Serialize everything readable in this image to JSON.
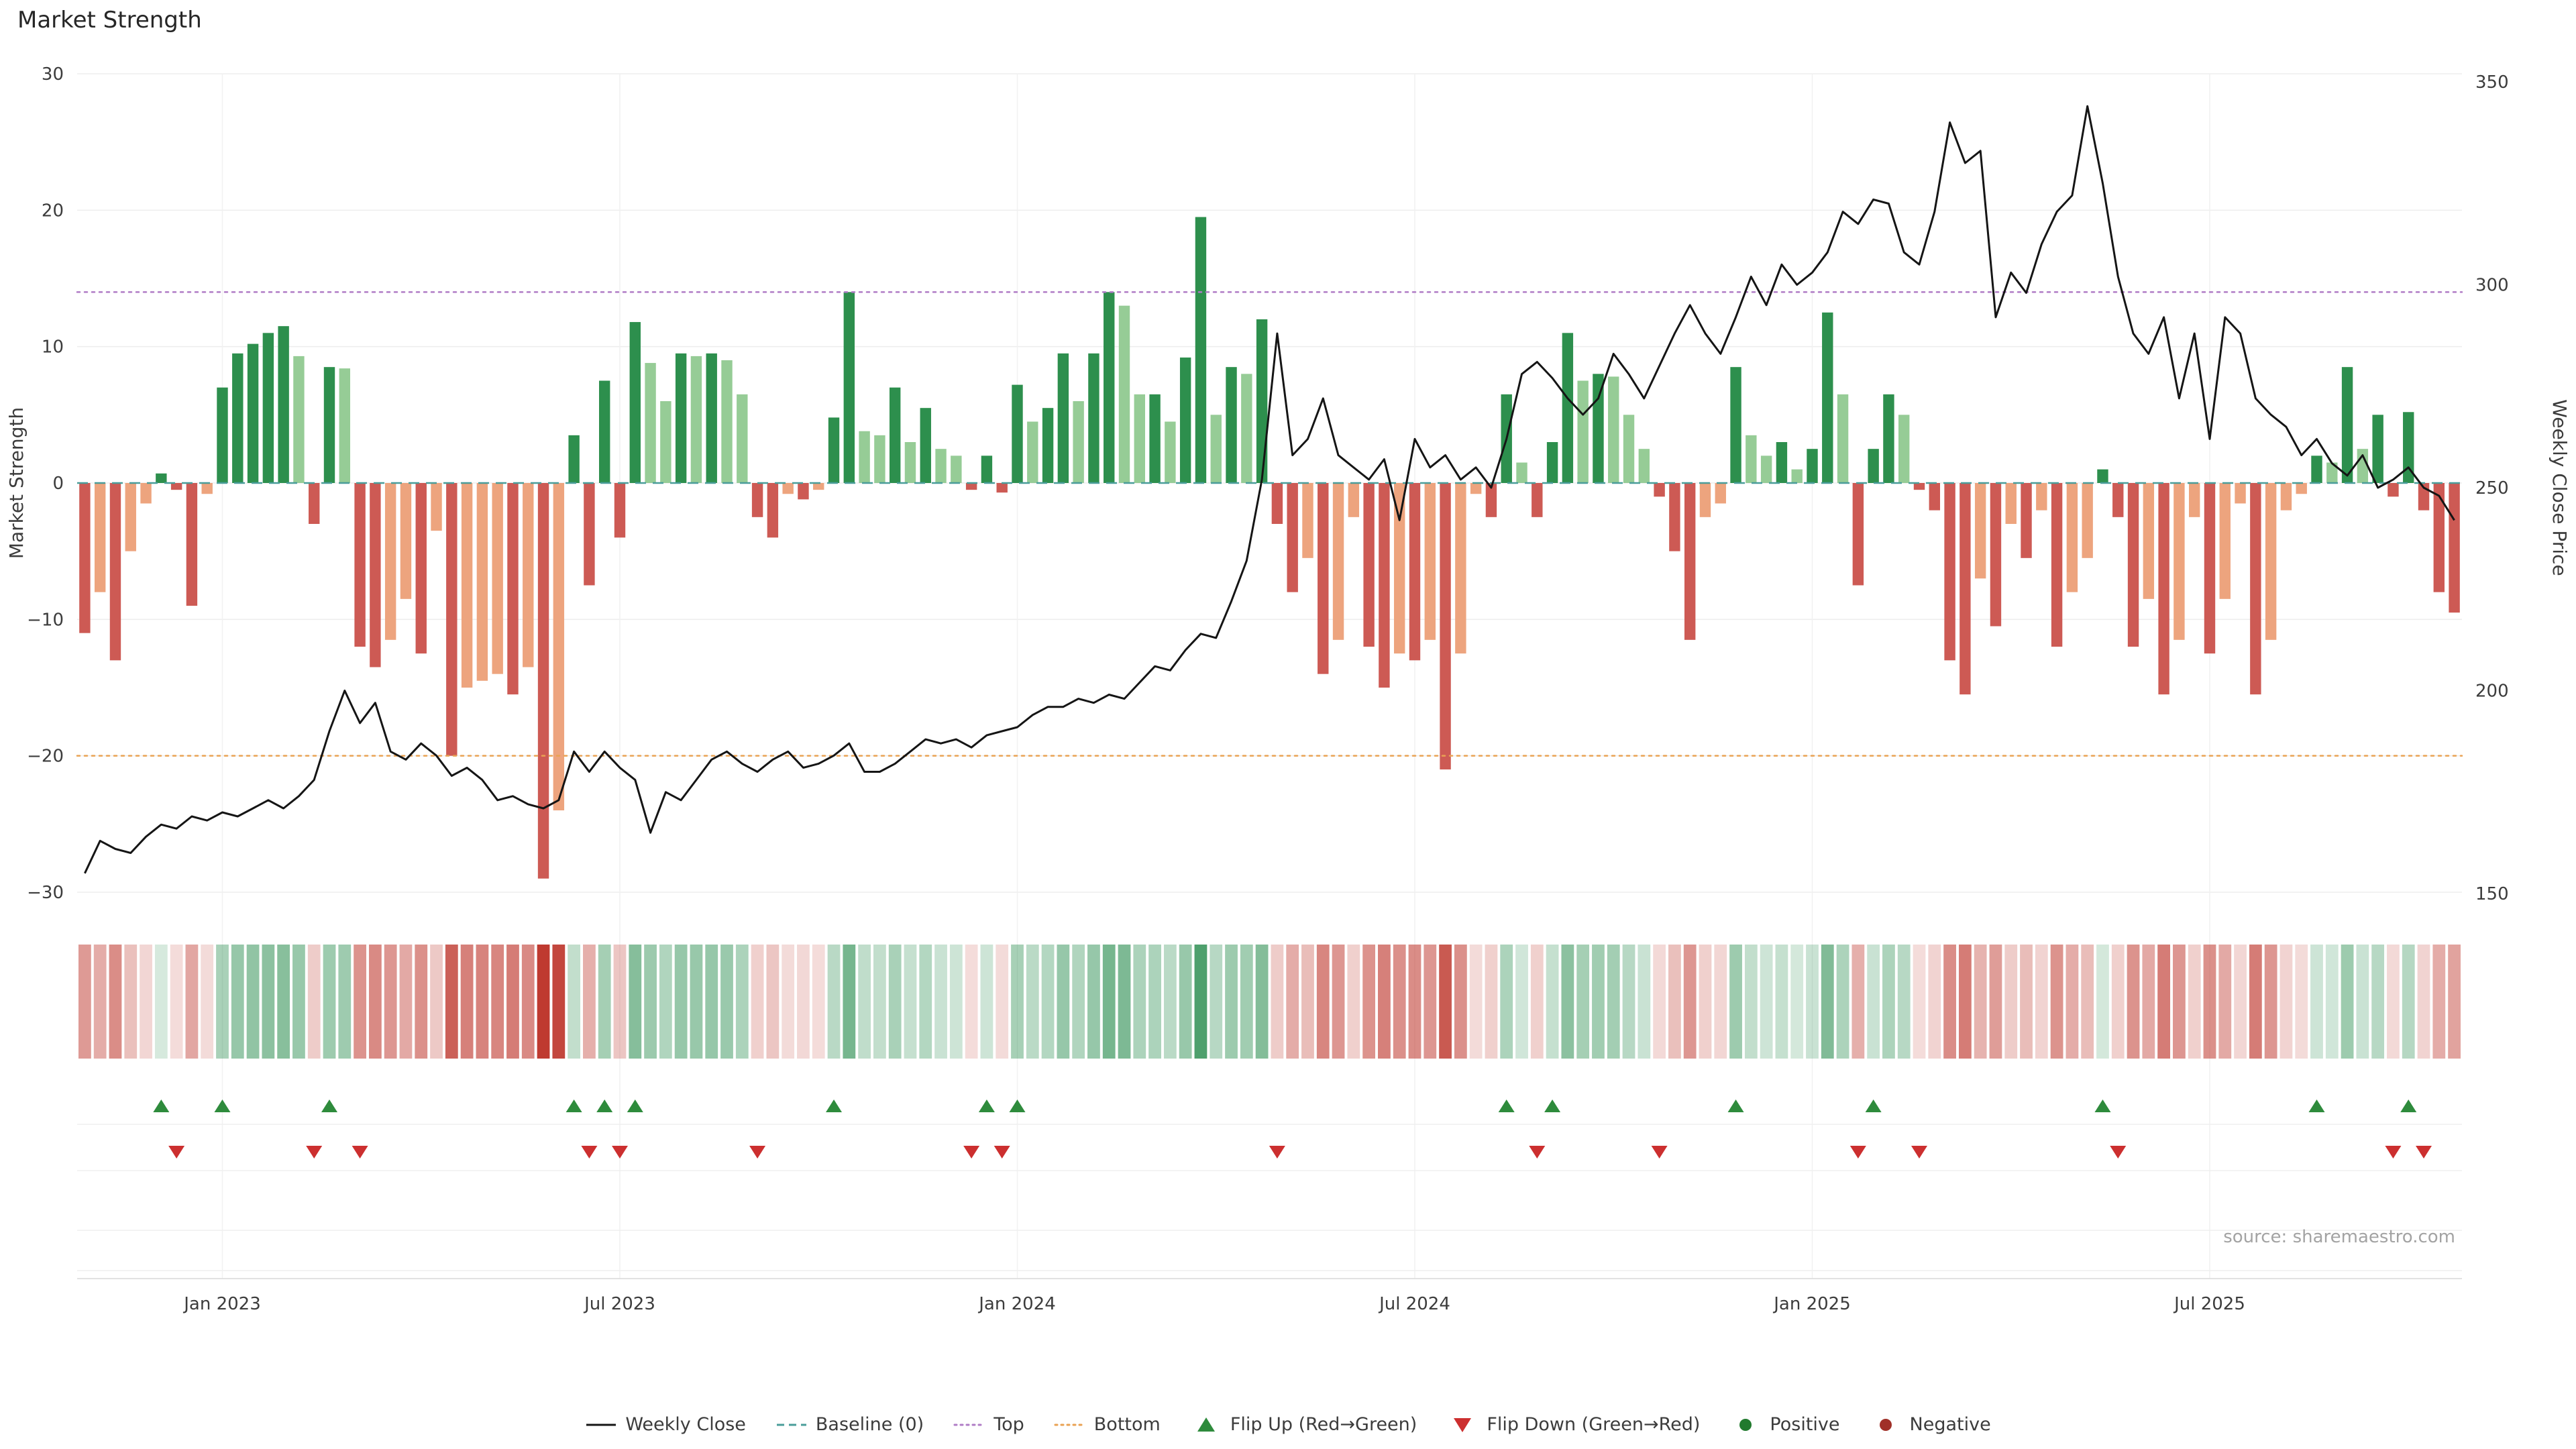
{
  "page": {
    "title": "Market Strength"
  },
  "chart_data": {
    "type": "combo",
    "title": "Market Strength",
    "source_label": "source: sharemaestro.com",
    "x_axis": {
      "tick_labels": [
        "Jan 2023",
        "Jul 2023",
        "Jan 2024",
        "Jul 2024",
        "Jan 2025",
        "Jul 2025"
      ],
      "tick_weeks": [
        9,
        35,
        61,
        87,
        113,
        139
      ],
      "n_weeks": 156
    },
    "left_axis": {
      "label": "Market Strength",
      "min": -30,
      "max": 30,
      "ticks": [
        -30,
        -20,
        -10,
        0,
        10,
        20,
        30
      ]
    },
    "right_axis": {
      "label": "Weekly Close Price",
      "min": 150,
      "max": 350,
      "ticks": [
        150,
        200,
        250,
        300,
        350
      ]
    },
    "reference_lines": {
      "baseline": 0,
      "top": 14,
      "bottom": -20
    },
    "series": [
      {
        "name": "Market Strength",
        "type": "bar",
        "axis": "left",
        "values": [
          -11,
          -8,
          -13,
          -5,
          -1.5,
          0.7,
          -0.5,
          -9,
          -0.8,
          7,
          9.5,
          10.2,
          11,
          11.5,
          9.3,
          -3,
          8.5,
          8.4,
          -12,
          -13.5,
          -11.5,
          -8.5,
          -12.5,
          -3.5,
          -20,
          -15,
          -14.5,
          -14,
          -15.5,
          -13.5,
          -29,
          -24,
          3.5,
          -7.5,
          7.5,
          -4,
          11.8,
          8.8,
          6,
          9.5,
          9.3,
          9.5,
          9,
          6.5,
          -2.5,
          -4,
          -0.8,
          -1.2,
          -0.5,
          4.8,
          14,
          3.8,
          3.5,
          7,
          3,
          5.5,
          2.5,
          2,
          -0.5,
          2,
          -0.7,
          7.2,
          4.5,
          5.5,
          9.5,
          6,
          9.5,
          14,
          13,
          6.5,
          6.5,
          4.5,
          9.2,
          19.5,
          5,
          8.5,
          8,
          12,
          -3,
          -8,
          -5.5,
          -14,
          -11.5,
          -2.5,
          -12,
          -15,
          -12.5,
          -13,
          -11.5,
          -21,
          -12.5,
          -0.8,
          -2.5,
          6.5,
          1.5,
          -2.5,
          3,
          11,
          7.5,
          8,
          7.8,
          5,
          2.5,
          -1,
          -5,
          -11.5,
          -2.5,
          -1.5,
          8.5,
          3.5,
          2,
          3,
          1,
          2.5,
          12.5,
          6.5,
          -7.5,
          2.5,
          6.5,
          5,
          -0.5,
          -2,
          -13,
          -15.5,
          -7,
          -10.5,
          -3,
          -5.5,
          -2,
          -12,
          -8,
          -5.5,
          1,
          -2.5,
          -12,
          -8.5,
          -15.5,
          -11.5,
          -2.5,
          -12.5,
          -8.5,
          -1.5,
          -15.5,
          -11.5,
          -2,
          -0.8,
          2,
          1.5,
          8.5,
          2.5,
          5,
          -1,
          5.2,
          -2,
          -8,
          -9.5
        ]
      },
      {
        "name": "Weekly Close",
        "type": "line",
        "axis": "right",
        "values": [
          155,
          163,
          161,
          160,
          164,
          167,
          166,
          169,
          168,
          170,
          169,
          171,
          173,
          171,
          174,
          178,
          190,
          200,
          192,
          197,
          185,
          183,
          187,
          184,
          179,
          181,
          178,
          173,
          174,
          172,
          171,
          173,
          185,
          180,
          185,
          181,
          178,
          165,
          175,
          173,
          178,
          183,
          185,
          182,
          180,
          183,
          185,
          181,
          182,
          184,
          187,
          180,
          180,
          182,
          185,
          188,
          187,
          188,
          186,
          189,
          190,
          191,
          194,
          196,
          196,
          198,
          197,
          199,
          198,
          202,
          206,
          205,
          210,
          214,
          213,
          222,
          232,
          252,
          288,
          258,
          262,
          272,
          258,
          255,
          252,
          257,
          242,
          262,
          255,
          258,
          252,
          255,
          250,
          262,
          278,
          281,
          277,
          272,
          268,
          272,
          283,
          278,
          272,
          280,
          288,
          295,
          288,
          283,
          292,
          302,
          295,
          305,
          300,
          303,
          308,
          318,
          315,
          321,
          320,
          308,
          305,
          318,
          340,
          330,
          333,
          292,
          303,
          298,
          310,
          318,
          322,
          344,
          325,
          302,
          288,
          283,
          292,
          272,
          288,
          262,
          292,
          288,
          272,
          268,
          265,
          258,
          262,
          256,
          253,
          258,
          250,
          252,
          255,
          250,
          248,
          242
        ]
      }
    ],
    "flip_up_weeks": [
      5,
      9,
      16,
      32,
      34,
      36,
      49,
      59,
      61,
      93,
      96,
      108,
      117,
      132,
      146,
      152
    ],
    "flip_down_weeks": [
      6,
      15,
      18,
      33,
      35,
      44,
      58,
      60,
      78,
      95,
      103,
      116,
      120,
      133,
      151,
      153
    ],
    "heatmap_from": "Market Strength"
  },
  "legend": {
    "items": [
      {
        "key": "weekly-close",
        "label": "Weekly Close",
        "swatch": "line",
        "color": "#151515"
      },
      {
        "key": "baseline",
        "label": "Baseline (0)",
        "swatch": "dash",
        "color": "#4a9d9a"
      },
      {
        "key": "top",
        "label": "Top",
        "swatch": "dot",
        "color": "#b07cc6"
      },
      {
        "key": "bottom",
        "label": "Bottom",
        "swatch": "dot",
        "color": "#e9a253"
      },
      {
        "key": "flip-up",
        "label": "Flip Up (Red→Green)",
        "swatch": "tri-up",
        "color": "#2e8b3c"
      },
      {
        "key": "flip-down",
        "label": "Flip Down (Green→Red)",
        "swatch": "tri-down",
        "color": "#cc2f2f"
      },
      {
        "key": "positive",
        "label": "Positive",
        "swatch": "circle",
        "color": "#217a2e"
      },
      {
        "key": "negative",
        "label": "Negative",
        "swatch": "circle",
        "color": "#a03028"
      }
    ]
  },
  "colors": {
    "bar_pos_dark": "#2d8f4d",
    "bar_pos_light": "#96cc96",
    "bar_neg_dark": "#cd5a54",
    "bar_neg_light": "#eda47e",
    "line": "#151515",
    "baseline": "#4a9d9a",
    "top": "#b07cc6",
    "bottom": "#e9a253",
    "flip_up": "#2e8b3c",
    "flip_down": "#cc2f2f",
    "grid": "#ededed",
    "heat_pos": "#1f8746",
    "heat_neg": "#bf3a30"
  }
}
